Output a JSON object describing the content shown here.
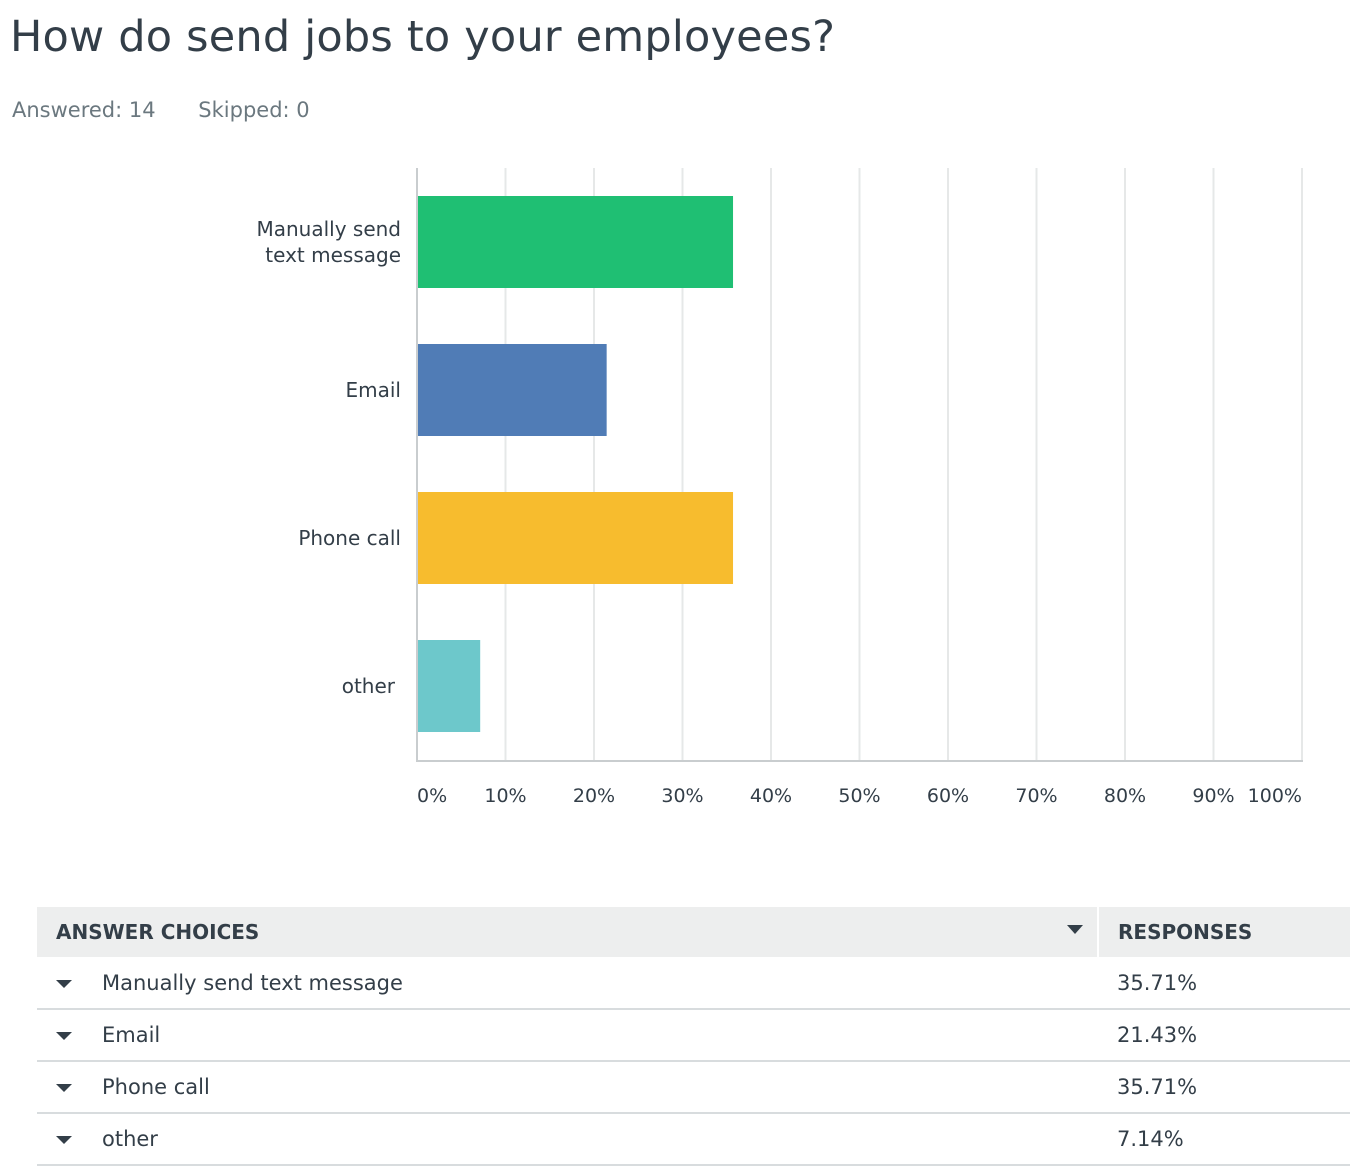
{
  "question": {
    "title": "How do send jobs to your employees?",
    "answered_label": "Answered: 14",
    "skipped_label": "Skipped: 0"
  },
  "chart_data": {
    "type": "bar",
    "orientation": "horizontal",
    "categories": [
      "Manually send text message",
      "Email",
      "Phone call",
      "other"
    ],
    "category_label_lines": [
      [
        "Manually send",
        "text message"
      ],
      [
        "Email"
      ],
      [
        "Phone call"
      ],
      [
        "other"
      ]
    ],
    "values": [
      35.71,
      21.43,
      35.71,
      7.14
    ],
    "colors": [
      "#1fbf73",
      "#507cb6",
      "#f7bc2e",
      "#6dc8cb"
    ],
    "xlim": [
      0,
      100
    ],
    "ticks": [
      0,
      10,
      20,
      30,
      40,
      50,
      60,
      70,
      80,
      90,
      100
    ],
    "tick_labels": [
      "0%",
      "10%",
      "20%",
      "30%",
      "40%",
      "50%",
      "60%",
      "70%",
      "80%",
      "90%",
      "100%"
    ],
    "grid": "vertical",
    "title": "",
    "xlabel": "",
    "ylabel": ""
  },
  "table": {
    "headers": {
      "choices": "ANSWER CHOICES",
      "responses": "RESPONSES"
    },
    "sort_icon": "caret-down-icon",
    "rows": [
      {
        "choice": "Manually send text message",
        "response": "35.71%"
      },
      {
        "choice": "Email",
        "response": "21.43%"
      },
      {
        "choice": "Phone call",
        "response": "35.71%"
      },
      {
        "choice": "other",
        "response": "7.14%"
      }
    ]
  }
}
